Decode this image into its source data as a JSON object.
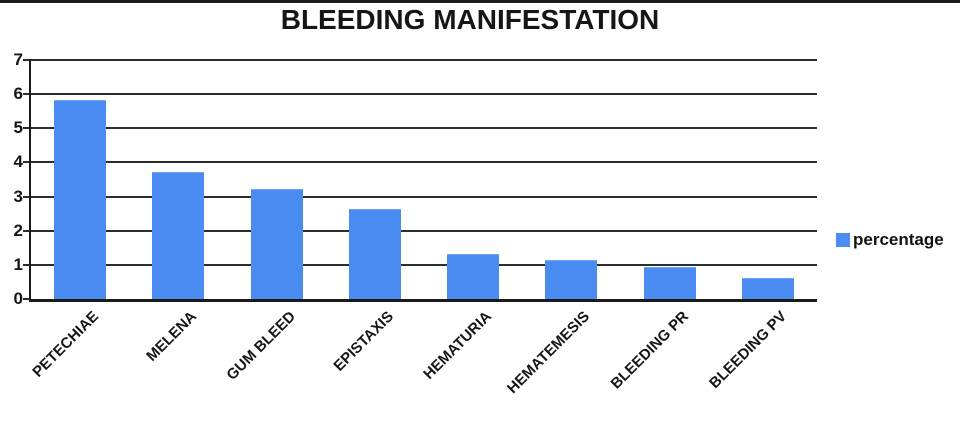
{
  "chart_data": {
    "type": "bar",
    "title": "BLEEDING MANIFESTATION",
    "categories": [
      "PETECHIAE",
      "MELENA",
      "GUM BLEED",
      "EPISTAXIS",
      "HEMATURIA",
      "HEMATEMESIS",
      "BLEEDING PR",
      "BLEEDING PV"
    ],
    "series": [
      {
        "name": "percentage",
        "values": [
          5.8,
          3.7,
          3.2,
          2.6,
          1.3,
          1.1,
          0.9,
          0.6
        ]
      }
    ],
    "xlabel": "",
    "ylabel": "",
    "ylim": [
      0,
      7
    ],
    "yticks": [
      0,
      1,
      2,
      3,
      4,
      5,
      6,
      7
    ],
    "grid": true,
    "legend": {
      "label": "percentage",
      "position": "right",
      "marker_color": "#4a8cf2"
    },
    "bar_color": "#4a8cf2",
    "gridline_color": "#2d2d2d",
    "axis_color": "#1a1a1a",
    "title_color": "#161616"
  }
}
